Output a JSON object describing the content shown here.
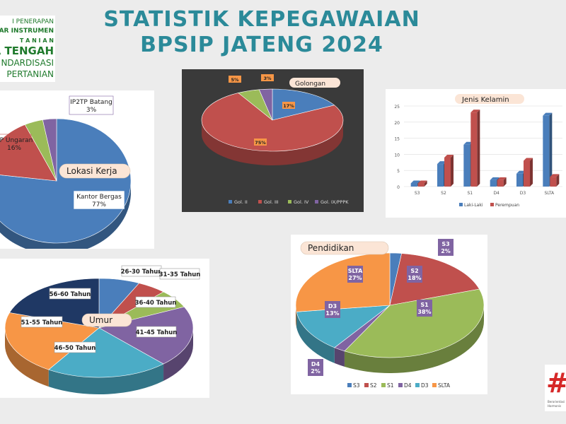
{
  "page": {
    "title_line1": "STATISTIK KEPEGAWAIAN",
    "title_line2": "BPSIP JATENG 2024"
  },
  "logo": {
    "lines": [
      "I PENERAPAN",
      "DAR INSTRUMEN",
      "T A N I A N",
      "A TENGAH",
      "NDARDISASI",
      "PERTANIAN"
    ]
  },
  "colors": {
    "title": "#2b8a99",
    "blue": "#4a7ebb",
    "red": "#c0504d",
    "green": "#9bbb59",
    "purple": "#8064a2",
    "aqua": "#4bacc6",
    "orange": "#f79646",
    "navy": "#1f3864",
    "label_bg": "#fbe5d6"
  },
  "corner_logo": {
    "hash": "#",
    "line1": "Berorientasi",
    "line2": "Harmonis"
  },
  "chart_data": [
    {
      "type": "pie",
      "id": "lokasi",
      "title": "Lokasi Kerja",
      "labels": [
        "Kantor Bergas",
        "KP Ungaran",
        "",
        "IP2TP Batang"
      ],
      "values": [
        77,
        16,
        4,
        3
      ],
      "value_labels": [
        "77%",
        "16%",
        "",
        "3%"
      ],
      "colors": [
        "#4a7ebb",
        "#c0504d",
        "#9bbb59",
        "#8064a2"
      ]
    },
    {
      "type": "pie",
      "id": "golongan",
      "title": "Golongan",
      "labels": [
        "Gol. II",
        "Gol. III",
        "Gol. IV",
        "Gol. IX/PPPK"
      ],
      "values": [
        17,
        75,
        5,
        3
      ],
      "value_labels": [
        "17%",
        "75%",
        "5%",
        "3%"
      ],
      "colors": [
        "#4a7ebb",
        "#c0504d",
        "#9bbb59",
        "#8064a2"
      ],
      "legend": "bottom"
    },
    {
      "type": "bar",
      "id": "jenis_kelamin",
      "title": "Jenis Kelamin",
      "categories": [
        "S3",
        "S2",
        "S1",
        "D4",
        "D3",
        "SLTA"
      ],
      "series": [
        {
          "name": "Laki-Laki",
          "values": [
            1,
            7,
            13,
            2,
            4,
            22
          ]
        },
        {
          "name": "Perempuan",
          "values": [
            1,
            9,
            23,
            2,
            8,
            3
          ]
        }
      ],
      "ylim": [
        0,
        25
      ],
      "yticks": [
        0,
        5,
        10,
        15,
        20,
        25
      ],
      "colors": [
        "#4a7ebb",
        "#c0504d"
      ],
      "legend": "bottom",
      "grid": true
    },
    {
      "type": "pie",
      "id": "umur",
      "title": "Umur",
      "labels": [
        "26-30 Tahun",
        "31-35 Tahun",
        "36-40 Tahun",
        "41-45 Tahun",
        "46-50 Tahun",
        "51-55 Tahun",
        "56-60 Tahun"
      ],
      "values": [
        7,
        5,
        6,
        20,
        21,
        21,
        20
      ],
      "colors": [
        "#4a7ebb",
        "#c0504d",
        "#9bbb59",
        "#8064a2",
        "#4bacc6",
        "#f79646",
        "#1f3864"
      ]
    },
    {
      "type": "pie",
      "id": "pendidikan",
      "title": "Pendidikan",
      "labels": [
        "S3",
        "S2",
        "S1",
        "D4",
        "D3",
        "SLTA"
      ],
      "values": [
        2,
        18,
        38,
        2,
        13,
        27
      ],
      "value_labels": [
        "2%",
        "18%",
        "38%",
        "2%",
        "13%",
        "27%"
      ],
      "colors": [
        "#4a7ebb",
        "#c0504d",
        "#9bbb59",
        "#8064a2",
        "#4bacc6",
        "#f79646"
      ],
      "legend": "bottom"
    }
  ]
}
